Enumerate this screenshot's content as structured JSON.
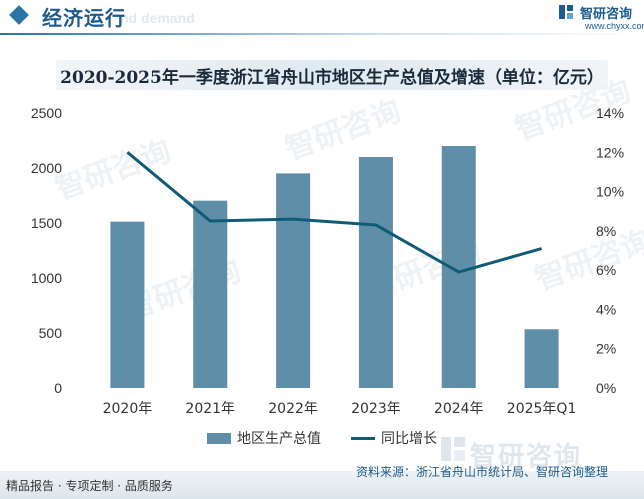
{
  "header": {
    "title": "经济运行",
    "ghost_text": "nd demand",
    "logo_cn": "智研咨询",
    "logo_url": "www.chyxx.com"
  },
  "chart_data": {
    "type": "bar",
    "title": "2020-2025年一季度浙江省舟山市地区生产总值及增速（单位：亿元）",
    "categories": [
      "2020年",
      "2021年",
      "2022年",
      "2023年",
      "2024年",
      "2025年Q1"
    ],
    "series": [
      {
        "name": "地区生产总值",
        "type": "bar",
        "axis": "left",
        "color": "#5f8ea8",
        "values": [
          1512,
          1703,
          1951,
          2100,
          2200,
          534
        ]
      },
      {
        "name": "同比增长",
        "type": "line",
        "axis": "right",
        "color": "#0f5b78",
        "values": [
          12.0,
          8.5,
          8.6,
          8.3,
          5.9,
          7.1
        ]
      }
    ],
    "y_left": {
      "min": 0,
      "max": 2500,
      "ticks": [
        "0",
        "500",
        "1000",
        "1500",
        "2000",
        "2500"
      ]
    },
    "y_right": {
      "min": 0,
      "max": 14,
      "ticks": [
        "0%",
        "2%",
        "4%",
        "6%",
        "8%",
        "10%",
        "12%",
        "14%"
      ]
    },
    "grid": false,
    "legend_position": "bottom"
  },
  "watermark": "智研咨询",
  "footer": {
    "left": "精品报告 · 专项定制 · 品质服务",
    "source": "资料来源：浙江省舟山市统计局、智研咨询整理"
  }
}
